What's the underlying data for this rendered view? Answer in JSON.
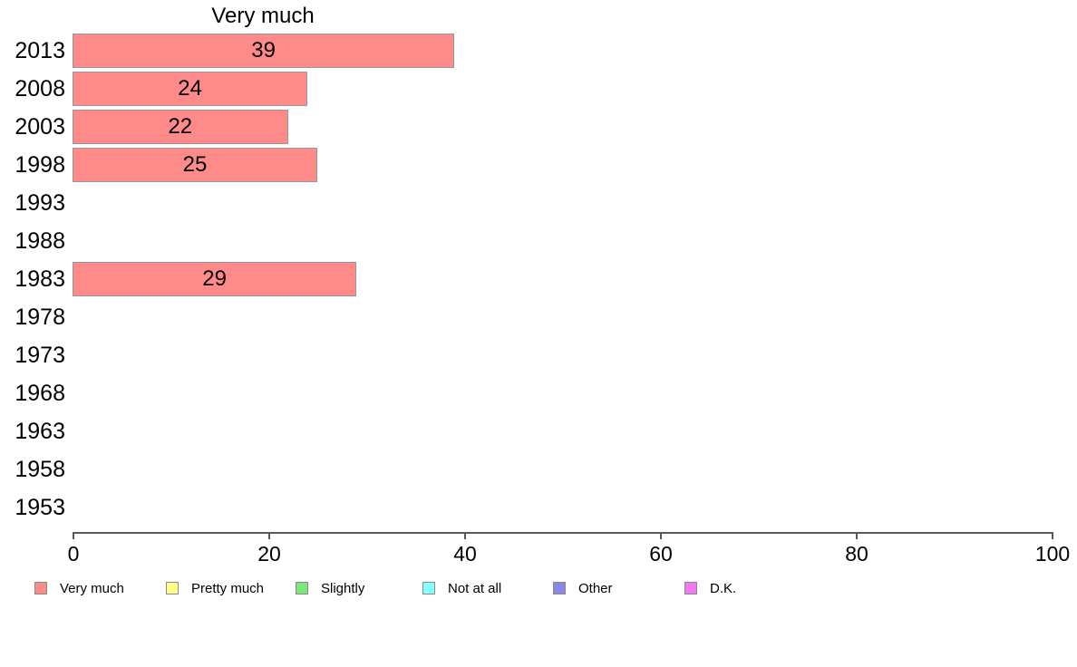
{
  "chart_data": {
    "type": "bar",
    "orientation": "horizontal",
    "title": "Very much",
    "categories": [
      "2013",
      "2008",
      "2003",
      "1998",
      "1993",
      "1988",
      "1983",
      "1978",
      "1973",
      "1968",
      "1963",
      "1958",
      "1953"
    ],
    "values": [
      39,
      24,
      22,
      25,
      null,
      null,
      29,
      null,
      null,
      null,
      null,
      null,
      null
    ],
    "bar_labels": [
      "39",
      "24",
      "22",
      "25",
      "",
      "",
      "29",
      "",
      "",
      "",
      "",
      "",
      ""
    ],
    "xlabel": "",
    "ylabel": "",
    "xlim": [
      0,
      100
    ],
    "x_ticks": [
      "0",
      "20",
      "40",
      "60",
      "80",
      "100"
    ],
    "x_tick_values": [
      0,
      20,
      40,
      60,
      80,
      100
    ],
    "grid": false,
    "bar_fill": "#ff8a8a",
    "bar_border": "#979797",
    "axis_color": "#5a5a5a",
    "legend_position": "bottom",
    "legend": [
      {
        "label": "Very much",
        "color": "#ff8a8a"
      },
      {
        "label": "Pretty much",
        "color": "#ffff88"
      },
      {
        "label": "Slightly",
        "color": "#7be87b"
      },
      {
        "label": "Not at all",
        "color": "#88ffff"
      },
      {
        "label": "Other",
        "color": "#8888e8"
      },
      {
        "label": "D.K.",
        "color": "#f07bf0"
      }
    ]
  }
}
